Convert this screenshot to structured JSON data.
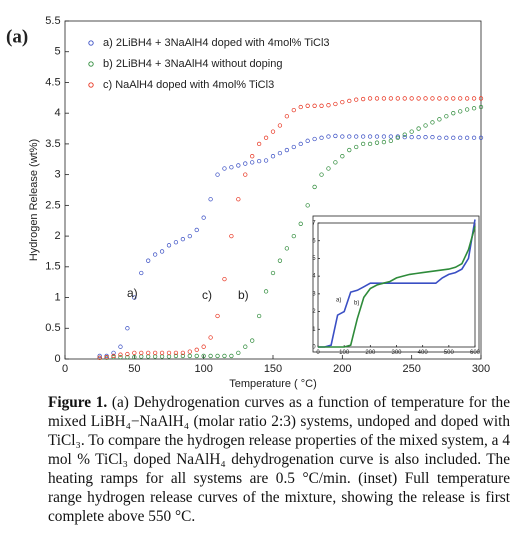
{
  "panel_label": "(a)",
  "chart_data": [
    {
      "type": "scatter",
      "xlabel": "Temperature ( °C)",
      "ylabel": "Hydrogen Release (wt%)",
      "x": [
        25,
        30,
        35,
        40,
        45,
        50,
        55,
        60,
        65,
        70,
        75,
        80,
        85,
        90,
        95,
        100,
        105,
        110,
        115,
        120,
        125,
        130,
        135,
        140,
        145,
        150,
        155,
        160,
        165,
        170,
        175,
        180,
        185,
        190,
        195,
        200,
        205,
        210,
        215,
        220,
        225,
        230,
        235,
        240,
        245,
        250,
        255,
        260,
        265,
        270,
        275,
        280,
        285,
        290,
        295,
        300
      ],
      "series": [
        {
          "name": "a) 2LiBH4 + 3NaAlH4 doped with 4mol% TiCl3",
          "color": "#3a4fc4",
          "values": [
            0.05,
            0.05,
            0.1,
            0.2,
            0.5,
            1.0,
            1.4,
            1.6,
            1.7,
            1.75,
            1.85,
            1.9,
            1.95,
            2.0,
            2.1,
            2.3,
            2.6,
            3.0,
            3.1,
            3.12,
            3.15,
            3.18,
            3.2,
            3.22,
            3.23,
            3.3,
            3.35,
            3.4,
            3.45,
            3.5,
            3.55,
            3.58,
            3.6,
            3.62,
            3.63,
            3.62,
            3.62,
            3.62,
            3.62,
            3.62,
            3.62,
            3.62,
            3.62,
            3.62,
            3.61,
            3.61,
            3.61,
            3.61,
            3.61,
            3.6,
            3.6,
            3.6,
            3.6,
            3.6,
            3.6,
            3.6
          ]
        },
        {
          "name": "b) 2LiBH4 + 3NaAlH4 without doping",
          "color": "#2e8b3a",
          "values": [
            0.02,
            0.02,
            0.03,
            0.03,
            0.03,
            0.03,
            0.04,
            0.04,
            0.04,
            0.04,
            0.04,
            0.05,
            0.05,
            0.05,
            0.05,
            0.05,
            0.05,
            0.05,
            0.05,
            0.05,
            0.1,
            0.2,
            0.3,
            0.7,
            1.1,
            1.4,
            1.6,
            1.8,
            2.0,
            2.2,
            2.5,
            2.8,
            3.0,
            3.1,
            3.2,
            3.3,
            3.4,
            3.45,
            3.5,
            3.5,
            3.52,
            3.53,
            3.55,
            3.6,
            3.65,
            3.7,
            3.75,
            3.8,
            3.85,
            3.9,
            3.95,
            4.0,
            4.03,
            4.06,
            4.08,
            4.1
          ]
        },
        {
          "name": "c) NaAlH4 doped with 4mol% TiCl3",
          "color": "#e8331f",
          "values": [
            0.02,
            0.03,
            0.05,
            0.07,
            0.08,
            0.1,
            0.1,
            0.1,
            0.1,
            0.1,
            0.1,
            0.1,
            0.1,
            0.12,
            0.15,
            0.2,
            0.35,
            0.7,
            1.3,
            2.0,
            2.6,
            3.0,
            3.3,
            3.5,
            3.6,
            3.7,
            3.8,
            3.95,
            4.05,
            4.1,
            4.12,
            4.12,
            4.12,
            4.13,
            4.15,
            4.18,
            4.2,
            4.22,
            4.23,
            4.24,
            4.24,
            4.24,
            4.24,
            4.24,
            4.24,
            4.24,
            4.24,
            4.24,
            4.24,
            4.24,
            4.24,
            4.24,
            4.24,
            4.24,
            4.24,
            4.24
          ]
        }
      ],
      "xlim": [
        0,
        300
      ],
      "xticks": [
        0,
        50,
        100,
        150,
        200,
        250,
        300
      ],
      "ylim": [
        0,
        5.5
      ],
      "yticks": [
        0,
        0.5,
        1,
        1.5,
        2,
        2.5,
        3,
        3.5,
        4,
        4.5,
        5,
        5.5
      ],
      "legend": "upper left",
      "annotations": [
        "a)",
        "c)",
        "b)"
      ]
    },
    {
      "type": "line",
      "x": [
        0,
        25,
        50,
        75,
        100,
        125,
        150,
        175,
        200,
        225,
        250,
        275,
        300,
        325,
        350,
        375,
        400,
        425,
        450,
        475,
        500,
        525,
        550,
        575,
        600
      ],
      "series": [
        {
          "color": "#3a4fc4",
          "values": [
            0,
            0,
            0.1,
            1.8,
            2.0,
            3.1,
            3.2,
            3.4,
            3.6,
            3.6,
            3.6,
            3.6,
            3.6,
            3.6,
            3.6,
            3.6,
            3.6,
            3.6,
            3.6,
            3.9,
            4.1,
            4.2,
            4.4,
            5.0,
            7.2
          ]
        },
        {
          "color": "#2e8b3a",
          "values": [
            0,
            0,
            0,
            0,
            0,
            0.1,
            1.6,
            2.8,
            3.3,
            3.5,
            3.6,
            3.7,
            3.9,
            4.0,
            4.1,
            4.15,
            4.2,
            4.25,
            4.3,
            4.35,
            4.4,
            4.5,
            4.7,
            5.5,
            6.8
          ]
        }
      ],
      "xlim": [
        0,
        600
      ],
      "xticks": [
        0,
        100,
        200,
        300,
        400,
        500,
        600
      ],
      "ylim": [
        0,
        7
      ],
      "yticks": [
        0,
        1,
        2,
        3,
        4,
        5,
        6,
        7
      ],
      "annotations": [
        "a)",
        "b)"
      ]
    }
  ],
  "caption": {
    "label": "Figure 1.",
    "text": "(a) Dehydrogenation curves as a function of temperature for the mixed LiBH₄−NaAlH₄ (molar ratio 2:3) systems, undoped and doped with TiCl₃. To compare the hydrogen release properties of the mixed system, a 4 mol % TiCl₃ doped NaAlH₄ dehydrogenation curve is also included. The heating ramps for all systems are 0.5 °C/min. (inset) Full temperature range hydrogen release curves of the mixture, showing the release is first complete above 550 °C."
  }
}
